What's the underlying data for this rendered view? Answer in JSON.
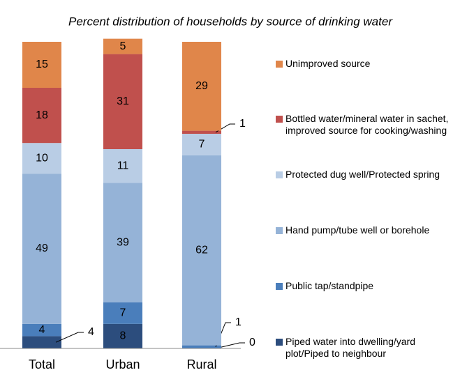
{
  "chart_data": {
    "type": "stacked_bar",
    "title": "Percent distribution of households by source of drinking water",
    "categories": [
      "Total",
      "Urban",
      "Rural"
    ],
    "ylim": [
      0,
      100
    ],
    "series": [
      {
        "name": "Piped water into dwelling/yard plot/Piped to neighbour",
        "color": "#2c4d7d",
        "values": [
          4,
          8,
          0
        ]
      },
      {
        "name": "Public tap/standpipe",
        "color": "#4a7ebb",
        "values": [
          4,
          7,
          1
        ]
      },
      {
        "name": "Hand pump/tube well or borehole",
        "color": "#95b3d7",
        "values": [
          49,
          39,
          62
        ]
      },
      {
        "name": "Protected dug well/Protected spring",
        "color": "#b9cde5",
        "values": [
          10,
          11,
          7
        ]
      },
      {
        "name": "Bottled water/mineral water in sachet, improved source for cooking/washing",
        "color": "#c0504d",
        "values": [
          18,
          31,
          1
        ]
      },
      {
        "name": "Unimproved source",
        "color": "#e0864a",
        "values": [
          15,
          5,
          29
        ]
      }
    ]
  }
}
